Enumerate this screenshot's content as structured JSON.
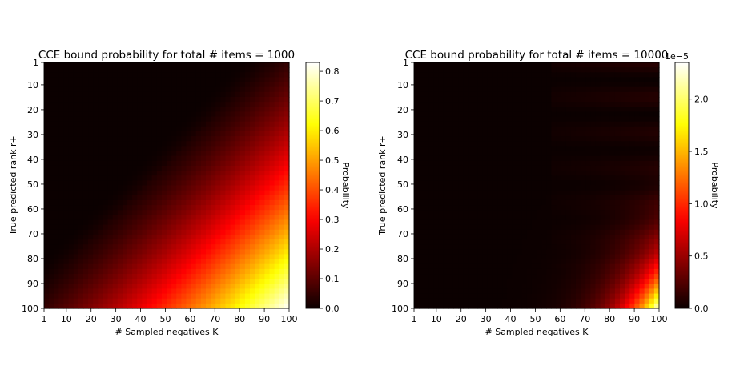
{
  "figure": {
    "colormap": "hot",
    "colormap_stops": [
      "#0b0000",
      "#ff0000",
      "#ffff00",
      "#ffffff"
    ]
  },
  "chart_data": [
    {
      "type": "heatmap",
      "title": "CCE bound probability for total # items = 1000",
      "xlabel": "# Sampled negatives K",
      "ylabel": "True predicted rank r+",
      "x_ticks": [
        "1",
        "10",
        "20",
        "30",
        "40",
        "50",
        "60",
        "70",
        "80",
        "90",
        "100"
      ],
      "y_ticks": [
        "1",
        "10",
        "20",
        "30",
        "40",
        "50",
        "60",
        "70",
        "80",
        "90",
        "100"
      ],
      "xlim": [
        1,
        100
      ],
      "ylim": [
        1,
        100
      ],
      "k_range": [
        1,
        100
      ],
      "r_range": [
        1,
        100
      ],
      "total_items": 1000,
      "colorbar": {
        "label": "Probability",
        "min": 0,
        "max": 0.83,
        "ticks": [
          "0.0",
          "0.1",
          "0.2",
          "0.3",
          "0.4",
          "0.5",
          "0.6",
          "0.7",
          "0.8"
        ],
        "tick_values": [
          0,
          0.1,
          0.2,
          0.3,
          0.4,
          0.5,
          0.6,
          0.7,
          0.8
        ],
        "offset_text": ""
      },
      "corner_values": {
        "r1_k1": 0,
        "r1_k100": 0,
        "r100_k1": 0,
        "r100_k100": 0.83
      }
    },
    {
      "type": "heatmap",
      "title": "CCE bound probability for total # items = 10000",
      "xlabel": "# Sampled negatives K",
      "ylabel": "True predicted rank r+",
      "x_ticks": [
        "1",
        "10",
        "20",
        "30",
        "40",
        "50",
        "60",
        "70",
        "80",
        "90",
        "100"
      ],
      "y_ticks": [
        "1",
        "10",
        "20",
        "30",
        "40",
        "50",
        "60",
        "70",
        "80",
        "90",
        "100"
      ],
      "xlim": [
        1,
        100
      ],
      "ylim": [
        1,
        100
      ],
      "k_range": [
        1,
        100
      ],
      "r_range": [
        1,
        100
      ],
      "total_items": 10000,
      "colorbar": {
        "label": "Probability",
        "min": 0,
        "max": 2.35,
        "ticks": [
          "0.0",
          "0.5",
          "1.0",
          "1.5",
          "2.0"
        ],
        "tick_values": [
          0,
          0.5,
          1.0,
          1.5,
          2.0
        ],
        "offset_text": "1e−5"
      },
      "corner_values": {
        "r1_k1": 0,
        "r1_k100": 0,
        "r100_k1": 0,
        "r100_k100": 2.35
      }
    }
  ]
}
